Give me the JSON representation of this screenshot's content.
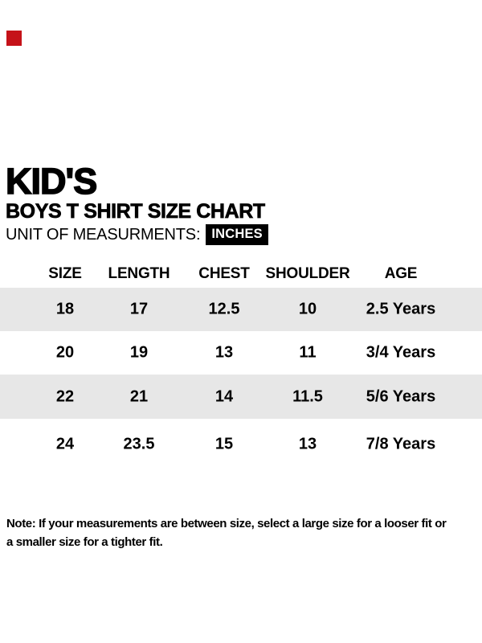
{
  "page": {
    "background": "#ffffff",
    "text_color": "#000000"
  },
  "red_mark": {
    "color": "#c51219"
  },
  "header": {
    "title": "KID'S",
    "subtitle": "BOYS T SHIRT SIZE CHART",
    "unit_label": "UNIT OF MEASURMENTS:",
    "unit_value": "INCHES",
    "unit_badge": {
      "background": "#000000",
      "color": "#ffffff"
    }
  },
  "chart_data": {
    "type": "table",
    "title": "BOYS T SHIRT SIZE CHART",
    "unit": "INCHES",
    "columns": [
      "SIZE",
      "LENGTH",
      "CHEST",
      "SHOULDER",
      "AGE"
    ],
    "rows": [
      [
        "18",
        "17",
        "12.5",
        "10",
        "2.5 Years"
      ],
      [
        "20",
        "19",
        "13",
        "11",
        "3/4 Years"
      ],
      [
        "22",
        "21",
        "14",
        "11.5",
        "5/6 Years"
      ],
      [
        "24",
        "23.5",
        "15",
        "13",
        "7/8 Years"
      ]
    ],
    "stripe_color": "#e7e7e7",
    "header_row_background": "#ffffff"
  },
  "note": {
    "line1": "Note: If your measurements are between size, select a large size for a looser fit or",
    "line2": "a smaller size for a tighter fit."
  }
}
